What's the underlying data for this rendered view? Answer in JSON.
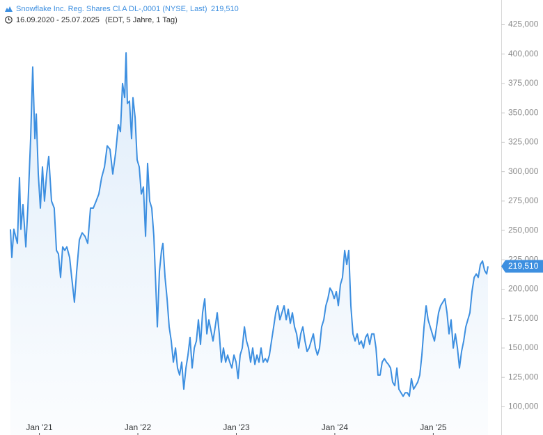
{
  "chart_data": {
    "type": "line",
    "title": "Snowflake Inc. Reg. Shares Cl.A DL-,0001 (NYSE, Last)",
    "last_value_label": "219,510",
    "date_range": "16.09.2020 - 25.07.2025",
    "subtitle": "(EDT, 5 Jahre, 1 Tag)",
    "color": "#3d8fe0",
    "xlim": [
      2020.6,
      2025.69
    ],
    "ylim": [
      76000,
      446000
    ],
    "xticks": [
      {
        "value": 2021,
        "label": "Jan '21"
      },
      {
        "value": 2022,
        "label": "Jan '22"
      },
      {
        "value": 2023,
        "label": "Jan '23"
      },
      {
        "value": 2024,
        "label": "Jan '24"
      },
      {
        "value": 2025,
        "label": "Jan '25"
      }
    ],
    "yticks": [
      {
        "value": 100000,
        "label": "100,000"
      },
      {
        "value": 125000,
        "label": "125,000"
      },
      {
        "value": 150000,
        "label": "150,000"
      },
      {
        "value": 175000,
        "label": "175,000"
      },
      {
        "value": 200000,
        "label": "200,000"
      },
      {
        "value": 225000,
        "label": "225,000"
      },
      {
        "value": 250000,
        "label": "250,000"
      },
      {
        "value": 275000,
        "label": "275,000"
      },
      {
        "value": 300000,
        "label": "300,000"
      },
      {
        "value": 325000,
        "label": "325,000"
      },
      {
        "value": 350000,
        "label": "350,000"
      },
      {
        "value": 375000,
        "label": "375,000"
      },
      {
        "value": 400000,
        "label": "400,000"
      },
      {
        "value": 425000,
        "label": "425,000"
      }
    ],
    "x": [
      2020.706,
      2020.72,
      2020.741,
      2020.777,
      2020.798,
      2020.812,
      2020.833,
      2020.862,
      2020.883,
      2020.911,
      2020.932,
      2020.954,
      2020.968,
      2020.989,
      2021.01,
      2021.031,
      2021.052,
      2021.074,
      2021.095,
      2021.123,
      2021.151,
      2021.173,
      2021.194,
      2021.215,
      2021.236,
      2021.258,
      2021.279,
      2021.307,
      2021.328,
      2021.356,
      2021.378,
      2021.406,
      2021.434,
      2021.463,
      2021.491,
      2021.519,
      2021.547,
      2021.576,
      2021.604,
      2021.632,
      2021.661,
      2021.689,
      2021.717,
      2021.745,
      2021.774,
      2021.802,
      2021.823,
      2021.844,
      2021.866,
      2021.88,
      2021.894,
      2021.915,
      2021.936,
      2021.95,
      2021.972,
      2021.993,
      2022.014,
      2022.035,
      2022.056,
      2022.078,
      2022.099,
      2022.12,
      2022.141,
      2022.162,
      2022.184,
      2022.198,
      2022.219,
      2022.24,
      2022.254,
      2022.276,
      2022.297,
      2022.318,
      2022.339,
      2022.36,
      2022.382,
      2022.403,
      2022.424,
      2022.445,
      2022.466,
      2022.488,
      2022.509,
      2022.53,
      2022.551,
      2022.573,
      2022.594,
      2022.615,
      2022.636,
      2022.657,
      2022.679,
      2022.7,
      2022.721,
      2022.742,
      2022.763,
      2022.785,
      2022.806,
      2022.827,
      2022.848,
      2022.869,
      2022.891,
      2022.912,
      2022.933,
      2022.954,
      2022.976,
      2022.997,
      2023.018,
      2023.039,
      2023.06,
      2023.082,
      2023.103,
      2023.124,
      2023.145,
      2023.166,
      2023.188,
      2023.209,
      2023.23,
      2023.251,
      2023.272,
      2023.294,
      2023.315,
      2023.336,
      2023.357,
      2023.379,
      2023.4,
      2023.421,
      2023.442,
      2023.463,
      2023.485,
      2023.506,
      2023.527,
      2023.548,
      2023.569,
      2023.591,
      2023.612,
      2023.633,
      2023.654,
      2023.675,
      2023.697,
      2023.718,
      2023.739,
      2023.76,
      2023.782,
      2023.803,
      2023.824,
      2023.845,
      2023.866,
      2023.888,
      2023.909,
      2023.93,
      2023.951,
      2023.972,
      2023.994,
      2024.015,
      2024.036,
      2024.057,
      2024.078,
      2024.1,
      2024.121,
      2024.142,
      2024.163,
      2024.184,
      2024.206,
      2024.227,
      2024.248,
      2024.269,
      2024.291,
      2024.312,
      2024.333,
      2024.354,
      2024.375,
      2024.397,
      2024.418,
      2024.439,
      2024.46,
      2024.481,
      2024.503,
      2024.524,
      2024.545,
      2024.566,
      2024.587,
      2024.609,
      2024.63,
      2024.651,
      2024.672,
      2024.694,
      2024.715,
      2024.736,
      2024.757,
      2024.778,
      2024.8,
      2024.821,
      2024.842,
      2024.863,
      2024.884,
      2024.906,
      2024.927,
      2024.948,
      2024.969,
      2024.99,
      2025.012,
      2025.033,
      2025.054,
      2025.075,
      2025.097,
      2025.118,
      2025.139,
      2025.16,
      2025.181,
      2025.203,
      2025.224,
      2025.245,
      2025.266,
      2025.287,
      2025.309,
      2025.33,
      2025.351,
      2025.372,
      2025.393,
      2025.415,
      2025.436,
      2025.457,
      2025.478,
      2025.5,
      2025.521,
      2025.542,
      2025.556
    ],
    "values": [
      251000,
      227000,
      251000,
      239000,
      295000,
      251000,
      272000,
      236000,
      269000,
      328000,
      389000,
      328000,
      349000,
      298000,
      269000,
      304000,
      275000,
      298000,
      313000,
      275000,
      269000,
      233000,
      230000,
      210000,
      236000,
      233000,
      236000,
      227000,
      210000,
      189000,
      215000,
      242000,
      248000,
      245000,
      239000,
      269000,
      269000,
      275000,
      281000,
      295000,
      304000,
      322000,
      319000,
      298000,
      316000,
      340000,
      334000,
      375000,
      363000,
      401000,
      358000,
      360000,
      328000,
      363000,
      346000,
      310000,
      304000,
      281000,
      287000,
      245000,
      307000,
      275000,
      269000,
      245000,
      198000,
      168000,
      215000,
      233000,
      239000,
      210000,
      192000,
      168000,
      156000,
      138000,
      150000,
      133000,
      127000,
      138000,
      115000,
      133000,
      144000,
      159000,
      133000,
      150000,
      156000,
      174000,
      153000,
      180000,
      192000,
      162000,
      174000,
      165000,
      156000,
      168000,
      180000,
      162000,
      138000,
      150000,
      138000,
      144000,
      138000,
      133000,
      144000,
      138000,
      124000,
      144000,
      150000,
      168000,
      156000,
      150000,
      138000,
      150000,
      136000,
      144000,
      138000,
      150000,
      138000,
      141000,
      138000,
      144000,
      156000,
      168000,
      180000,
      186000,
      174000,
      180000,
      186000,
      174000,
      183000,
      171000,
      180000,
      168000,
      162000,
      150000,
      162000,
      168000,
      156000,
      147000,
      150000,
      156000,
      162000,
      150000,
      144000,
      150000,
      168000,
      174000,
      186000,
      192000,
      201000,
      198000,
      192000,
      198000,
      186000,
      204000,
      210000,
      233000,
      221000,
      233000,
      186000,
      162000,
      156000,
      162000,
      153000,
      156000,
      150000,
      159000,
      162000,
      153000,
      162000,
      162000,
      150000,
      127000,
      127000,
      138000,
      141000,
      138000,
      136000,
      133000,
      121000,
      118000,
      133000,
      115000,
      112000,
      109000,
      112000,
      112000,
      109000,
      124000,
      115000,
      118000,
      121000,
      127000,
      144000,
      168000,
      186000,
      174000,
      168000,
      162000,
      156000,
      168000,
      180000,
      186000,
      189000,
      192000,
      180000,
      162000,
      174000,
      150000,
      162000,
      150000,
      133000,
      147000,
      156000,
      168000,
      174000,
      180000,
      198000,
      210000,
      213000,
      210000,
      221000,
      224000,
      216000,
      213000,
      219510
    ]
  }
}
